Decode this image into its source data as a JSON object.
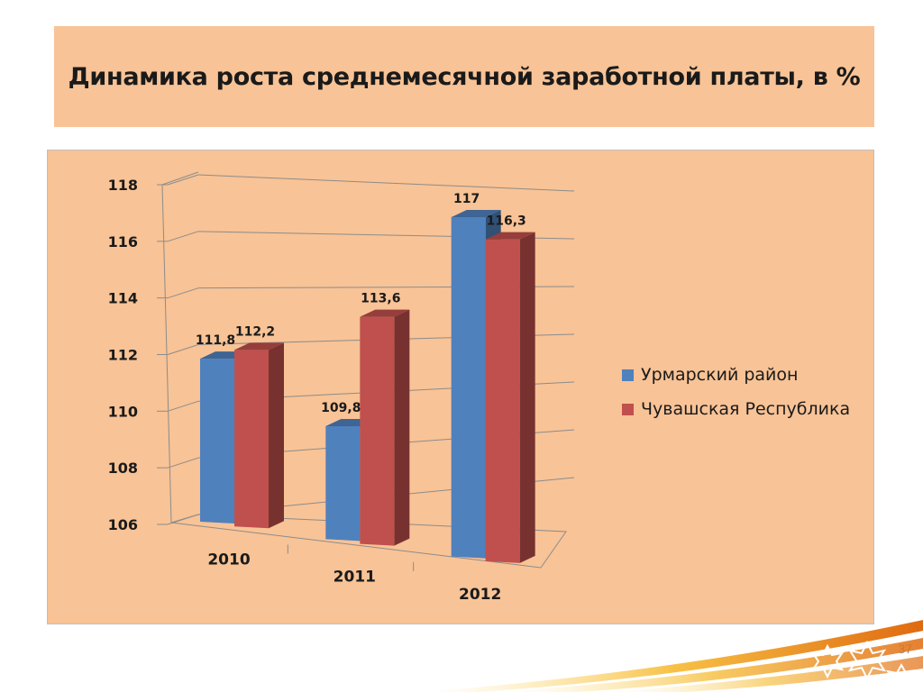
{
  "title": "Динамика роста среднемесячной заработной платы, в %",
  "slide_number": "37",
  "colors": {
    "series1": "#4f81bd",
    "series2": "#c0504d",
    "background": "#f8c396"
  },
  "chart_data": {
    "type": "bar",
    "title": "",
    "categories": [
      "2010",
      "2011",
      "2012"
    ],
    "series": [
      {
        "name": "Урмарский район",
        "values": [
          111.8,
          109.8,
          117
        ],
        "labels": [
          "111,8",
          "109,8",
          "117"
        ]
      },
      {
        "name": "Чувашская Республика",
        "values": [
          112.2,
          113.6,
          116.3
        ],
        "labels": [
          "112,2",
          "113,6",
          "116,3"
        ]
      }
    ],
    "ylim": [
      106,
      118
    ],
    "yticks": [
      "106",
      "108",
      "110",
      "112",
      "114",
      "116",
      "118"
    ],
    "grid": true,
    "legend_position": "right",
    "three_d": true
  }
}
